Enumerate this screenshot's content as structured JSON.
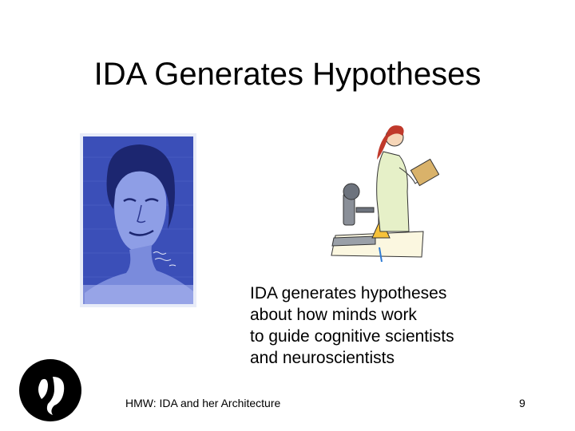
{
  "slide": {
    "title": "IDA Generates Hypotheses",
    "body_lines": [
      "IDA generates hypotheses",
      "about how minds work",
      "to guide cognitive scientists",
      "and neuroscientists"
    ],
    "footer_text": "HMW: IDA and her Architecture",
    "page_number": "9"
  },
  "images": {
    "portrait": "blue-portrait-mural",
    "scientist": "scientist-with-microscope-clipart",
    "logo": "stylized-logo-mark"
  },
  "colors": {
    "portrait_blue": "#3b4fb8",
    "text": "#000000",
    "background": "#ffffff"
  }
}
